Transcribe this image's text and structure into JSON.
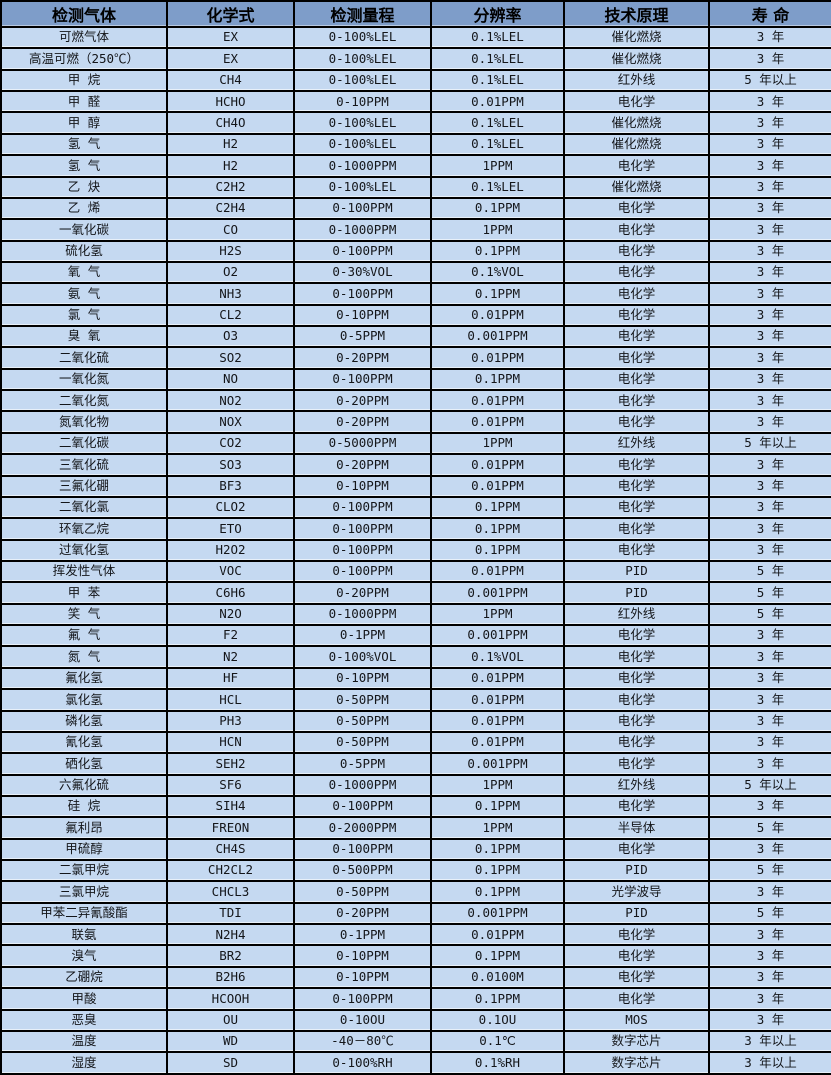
{
  "colors": {
    "header_bg": "#7e9dc9",
    "row_bg": "#c5d9f1",
    "border": "#000000",
    "text": "#14161a"
  },
  "table": {
    "headers": [
      "检测气体",
      "化学式",
      "检测量程",
      "分辨率",
      "技术原理",
      "寿 命"
    ],
    "column_keys": [
      "gas-name",
      "chemical-formula",
      "detection-range",
      "resolution",
      "technology-principle",
      "lifespan"
    ],
    "rows": [
      [
        "可燃气体",
        "EX",
        "0-100%LEL",
        "0.1%LEL",
        "催化燃烧",
        "3 年"
      ],
      [
        "高温可燃（250℃）",
        "EX",
        "0-100%LEL",
        "0.1%LEL",
        "催化燃烧",
        "3 年"
      ],
      [
        "甲 烷",
        "CH4",
        "0-100%LEL",
        "0.1%LEL",
        "红外线",
        "5 年以上"
      ],
      [
        "甲 醛",
        "HCHO",
        "0-10PPM",
        "0.01PPM",
        "电化学",
        "3 年"
      ],
      [
        "甲 醇",
        "CH4O",
        "0-100%LEL",
        "0.1%LEL",
        "催化燃烧",
        "3 年"
      ],
      [
        "氢 气",
        "H2",
        "0-100%LEL",
        "0.1%LEL",
        "催化燃烧",
        "3 年"
      ],
      [
        "氢 气",
        "H2",
        "0-1000PPM",
        "1PPM",
        "电化学",
        "3 年"
      ],
      [
        "乙 炔",
        "C2H2",
        "0-100%LEL",
        "0.1%LEL",
        "催化燃烧",
        "3 年"
      ],
      [
        "乙 烯",
        "C2H4",
        "0-100PPM",
        "0.1PPM",
        "电化学",
        "3 年"
      ],
      [
        "一氧化碳",
        "CO",
        "0-1000PPM",
        "1PPM",
        "电化学",
        "3 年"
      ],
      [
        "硫化氢",
        "H2S",
        "0-100PPM",
        "0.1PPM",
        "电化学",
        "3 年"
      ],
      [
        "氧 气",
        "O2",
        "0-30%VOL",
        "0.1%VOL",
        "电化学",
        "3 年"
      ],
      [
        "氨 气",
        "NH3",
        "0-100PPM",
        "0.1PPM",
        "电化学",
        "3 年"
      ],
      [
        "氯 气",
        "CL2",
        "0-10PPM",
        "0.01PPM",
        "电化学",
        "3 年"
      ],
      [
        "臭 氧",
        "O3",
        "0-5PPM",
        "0.001PPM",
        "电化学",
        "3 年"
      ],
      [
        "二氧化硫",
        "SO2",
        "0-20PPM",
        "0.01PPM",
        "电化学",
        "3 年"
      ],
      [
        "一氧化氮",
        "NO",
        "0-100PPM",
        "0.1PPM",
        "电化学",
        "3 年"
      ],
      [
        "二氧化氮",
        "NO2",
        "0-20PPM",
        "0.01PPM",
        "电化学",
        "3 年"
      ],
      [
        "氮氧化物",
        "NOX",
        "0-20PPM",
        "0.01PPM",
        "电化学",
        "3 年"
      ],
      [
        "二氧化碳",
        "CO2",
        "0-5000PPM",
        "1PPM",
        "红外线",
        "5 年以上"
      ],
      [
        "三氧化硫",
        "SO3",
        "0-20PPM",
        "0.01PPM",
        "电化学",
        "3 年"
      ],
      [
        "三氟化硼",
        "BF3",
        "0-10PPM",
        "0.01PPM",
        "电化学",
        "3 年"
      ],
      [
        "二氧化氯",
        "CLO2",
        "0-100PPM",
        "0.1PPM",
        "电化学",
        "3 年"
      ],
      [
        "环氧乙烷",
        "ETO",
        "0-100PPM",
        "0.1PPM",
        "电化学",
        "3 年"
      ],
      [
        "过氧化氢",
        "H2O2",
        "0-100PPM",
        "0.1PPM",
        "电化学",
        "3 年"
      ],
      [
        "挥发性气体",
        "VOC",
        "0-100PPM",
        "0.01PPM",
        "PID",
        "5 年"
      ],
      [
        "甲 苯",
        "C6H6",
        "0-20PPM",
        "0.001PPM",
        "PID",
        "5 年"
      ],
      [
        "笑 气",
        "N2O",
        "0-1000PPM",
        "1PPM",
        "红外线",
        "5 年"
      ],
      [
        "氟 气",
        "F2",
        "0-1PPM",
        "0.001PPM",
        "电化学",
        "3 年"
      ],
      [
        "氮 气",
        "N2",
        "0-100%VOL",
        "0.1%VOL",
        "电化学",
        "3 年"
      ],
      [
        "氟化氢",
        "HF",
        "0-10PPM",
        "0.01PPM",
        "电化学",
        "3 年"
      ],
      [
        "氯化氢",
        "HCL",
        "0-50PPM",
        "0.01PPM",
        "电化学",
        "3 年"
      ],
      [
        "磷化氢",
        "PH3",
        "0-50PPM",
        "0.01PPM",
        "电化学",
        "3 年"
      ],
      [
        "氰化氢",
        "HCN",
        "0-50PPM",
        "0.01PPM",
        "电化学",
        "3 年"
      ],
      [
        "硒化氢",
        "SEH2",
        "0-5PPM",
        "0.001PPM",
        "电化学",
        "3 年"
      ],
      [
        "六氟化硫",
        "SF6",
        "0-1000PPM",
        "1PPM",
        "红外线",
        "5 年以上"
      ],
      [
        "硅 烷",
        "SIH4",
        "0-100PPM",
        "0.1PPM",
        "电化学",
        "3 年"
      ],
      [
        "氟利昂",
        "FREON",
        "0-2000PPM",
        "1PPM",
        "半导体",
        "5 年"
      ],
      [
        "甲硫醇",
        "CH4S",
        "0-100PPM",
        "0.1PPM",
        "电化学",
        "3 年"
      ],
      [
        "二氯甲烷",
        "CH2CL2",
        "0-500PPM",
        "0.1PPM",
        "PID",
        "5 年"
      ],
      [
        "三氯甲烷",
        "CHCL3",
        "0-50PPM",
        "0.1PPM",
        "光学波导",
        "3 年"
      ],
      [
        "甲苯二异氰酸酯",
        "TDI",
        "0-20PPM",
        "0.001PPM",
        "PID",
        "5 年"
      ],
      [
        "联氨",
        "N2H4",
        "0-1PPM",
        "0.01PPM",
        "电化学",
        "3 年"
      ],
      [
        "溴气",
        "BR2",
        "0-10PPM",
        "0.1PPM",
        "电化学",
        "3 年"
      ],
      [
        "乙硼烷",
        "B2H6",
        "0-10PPM",
        "0.0100M",
        "电化学",
        "3 年"
      ],
      [
        "甲酸",
        "HCOOH",
        "0-100PPM",
        "0.1PPM",
        "电化学",
        "3 年"
      ],
      [
        "恶臭",
        "OU",
        "0-10OU",
        "0.1OU",
        "MOS",
        "3 年"
      ],
      [
        "温度",
        "WD",
        "-40－80℃",
        "0.1℃",
        "数字芯片",
        "3 年以上"
      ],
      [
        "湿度",
        "SD",
        "0-100%RH",
        "0.1%RH",
        "数字芯片",
        "3 年以上"
      ]
    ]
  }
}
